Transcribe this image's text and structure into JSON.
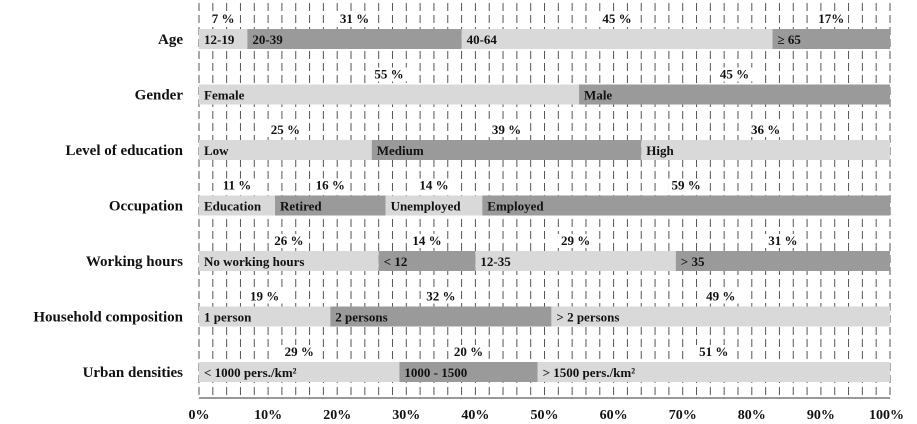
{
  "chart_data": {
    "type": "bar",
    "stacked": "100%",
    "orientation": "horizontal",
    "grid": "vertical dashed lines",
    "xlim": [
      0,
      100
    ],
    "x_ticks": [
      "0%",
      "10%",
      "20%",
      "30%",
      "40%",
      "50%",
      "60%",
      "70%",
      "80%",
      "90%",
      "100%"
    ],
    "colors": {
      "light": "#d9d9d9",
      "dark": "#9a9a9a",
      "grid": "#555555"
    },
    "categories": [
      {
        "name": "Age",
        "segments": [
          {
            "label": "12-19",
            "value": 7,
            "value_label": "7 %",
            "shade": "light"
          },
          {
            "label": "20-39",
            "value": 31,
            "value_label": "31 %",
            "shade": "dark"
          },
          {
            "label": "40-64",
            "value": 45,
            "value_label": "45 %",
            "shade": "light"
          },
          {
            "label": "≥ 65",
            "value": 17,
            "value_label": "17%",
            "shade": "dark"
          }
        ]
      },
      {
        "name": "Gender",
        "segments": [
          {
            "label": "Female",
            "value": 55,
            "value_label": "55 %",
            "shade": "light"
          },
          {
            "label": "Male",
            "value": 45,
            "value_label": "45 %",
            "shade": "dark"
          }
        ]
      },
      {
        "name": "Level of education",
        "segments": [
          {
            "label": "Low",
            "value": 25,
            "value_label": "25 %",
            "shade": "light"
          },
          {
            "label": "Medium",
            "value": 39,
            "value_label": "39 %",
            "shade": "dark"
          },
          {
            "label": "High",
            "value": 36,
            "value_label": "36 %",
            "shade": "light"
          }
        ]
      },
      {
        "name": "Occupation",
        "segments": [
          {
            "label": "Education",
            "value": 11,
            "value_label": "11 %",
            "shade": "light"
          },
          {
            "label": "Retired",
            "value": 16,
            "value_label": "16 %",
            "shade": "dark"
          },
          {
            "label": "Unemployed",
            "value": 14,
            "value_label": "14 %",
            "shade": "light"
          },
          {
            "label": "Employed",
            "value": 59,
            "value_label": "59 %",
            "shade": "dark"
          }
        ]
      },
      {
        "name": "Working hours",
        "segments": [
          {
            "label": "No working hours",
            "value": 26,
            "value_label": "26 %",
            "shade": "light"
          },
          {
            "label": "< 12",
            "value": 14,
            "value_label": "14 %",
            "shade": "dark"
          },
          {
            "label": "12-35",
            "value": 29,
            "value_label": "29 %",
            "shade": "light"
          },
          {
            "label": "> 35",
            "value": 31,
            "value_label": "31 %",
            "shade": "dark"
          }
        ]
      },
      {
        "name": "Household composition",
        "segments": [
          {
            "label": "1 person",
            "value": 19,
            "value_label": "19 %",
            "shade": "light"
          },
          {
            "label": "2 persons",
            "value": 32,
            "value_label": "32 %",
            "shade": "dark"
          },
          {
            "label": "> 2 persons",
            "value": 49,
            "value_label": "49 %",
            "shade": "light"
          }
        ]
      },
      {
        "name": "Urban densities",
        "segments": [
          {
            "label": "< 1000 pers./km²",
            "value": 29,
            "value_label": "29 %",
            "shade": "light"
          },
          {
            "label": "1000 - 1500",
            "value": 20,
            "value_label": "20 %",
            "shade": "dark"
          },
          {
            "label": "> 1500 pers./km²",
            "value": 51,
            "value_label": "51 %",
            "shade": "light"
          }
        ]
      }
    ]
  }
}
